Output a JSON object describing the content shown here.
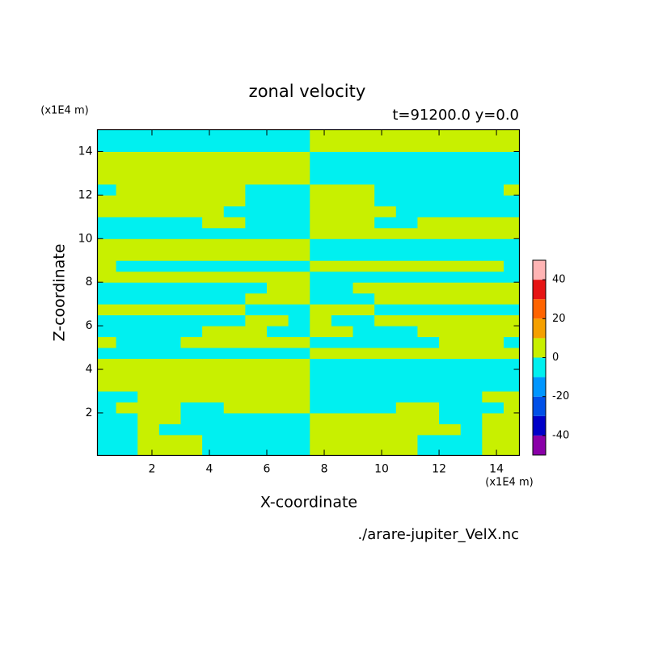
{
  "chart_data": {
    "type": "contour",
    "title": "zonal velocity",
    "subtitle": "t=91200.0 y=0.0",
    "x_label": "X-coordinate",
    "y_label": "Z-coordinate",
    "x_unit": "(x1E4 m)",
    "y_unit": "(x1E4 m)",
    "source": "./arare-jupiter_VelX.nc",
    "xlim": [
      0.1,
      14.8
    ],
    "ylim": [
      0.05,
      15
    ],
    "xticks": [
      2,
      4,
      6,
      8,
      10,
      12,
      14
    ],
    "yticks": [
      2,
      4,
      6,
      8,
      10,
      12,
      14
    ],
    "xbins": [
      0,
      0.75,
      1.5,
      2.25,
      3,
      3.75,
      4.5,
      5.25,
      6,
      6.75,
      7.5,
      8.25,
      9,
      9.75,
      10.5,
      11.25,
      12,
      12.75,
      13.5,
      14.25,
      15
    ],
    "ybins": [
      0,
      0.5,
      1,
      1.5,
      2,
      2.5,
      3,
      3.5,
      4,
      4.5,
      5,
      5.5,
      6,
      6.5,
      7,
      7.5,
      8,
      8.5,
      9,
      9.5,
      10,
      10.5,
      11,
      11.5,
      12,
      12.5,
      13,
      13.5,
      14,
      14.5,
      15
    ],
    "values": [
      [
        -5,
        -5,
        5,
        5,
        5,
        -5,
        -5,
        -5,
        -5,
        -5,
        5,
        5,
        5,
        5,
        5,
        -5,
        -5,
        -5,
        5,
        5
      ],
      [
        -5,
        -5,
        5,
        5,
        5,
        -5,
        -5,
        -5,
        -5,
        -5,
        5,
        5,
        5,
        5,
        5,
        -5,
        -5,
        -5,
        5,
        5
      ],
      [
        -5,
        -5,
        5,
        -5,
        -5,
        -5,
        -5,
        -5,
        -5,
        -5,
        5,
        5,
        5,
        5,
        5,
        5,
        5,
        -5,
        5,
        5
      ],
      [
        -5,
        -5,
        5,
        5,
        -5,
        -5,
        -5,
        -5,
        -5,
        -5,
        5,
        5,
        5,
        5,
        5,
        5,
        -5,
        -5,
        5,
        5
      ],
      [
        -5,
        5,
        5,
        5,
        -5,
        -5,
        5,
        5,
        5,
        5,
        -5,
        -5,
        -5,
        -5,
        5,
        5,
        -5,
        -5,
        -5,
        5
      ],
      [
        -5,
        -5,
        5,
        5,
        5,
        5,
        5,
        5,
        5,
        5,
        -5,
        -5,
        -5,
        -5,
        -5,
        -5,
        -5,
        -5,
        5,
        5
      ],
      [
        5,
        5,
        5,
        5,
        5,
        5,
        5,
        5,
        5,
        5,
        -5,
        -5,
        -5,
        -5,
        -5,
        -5,
        -5,
        -5,
        -5,
        -5
      ],
      [
        5,
        5,
        5,
        5,
        5,
        5,
        5,
        5,
        5,
        5,
        -5,
        -5,
        -5,
        -5,
        -5,
        -5,
        -5,
        -5,
        -5,
        -5
      ],
      [
        5,
        5,
        5,
        5,
        5,
        5,
        5,
        5,
        5,
        5,
        -5,
        -5,
        -5,
        -5,
        -5,
        -5,
        -5,
        -5,
        -5,
        -5
      ],
      [
        -5,
        -5,
        -5,
        -5,
        -5,
        -5,
        -5,
        -5,
        -5,
        -5,
        5,
        5,
        5,
        5,
        5,
        5,
        5,
        5,
        5,
        5
      ],
      [
        5,
        -5,
        -5,
        -5,
        5,
        5,
        5,
        5,
        5,
        5,
        -5,
        -5,
        -5,
        -5,
        -5,
        -5,
        5,
        5,
        5,
        -5
      ],
      [
        -5,
        -5,
        -5,
        -5,
        -5,
        5,
        5,
        5,
        -5,
        -5,
        5,
        5,
        -5,
        -5,
        -5,
        5,
        5,
        5,
        5,
        5
      ],
      [
        -5,
        -5,
        -5,
        -5,
        -5,
        -5,
        -5,
        5,
        5,
        -5,
        5,
        -5,
        -5,
        5,
        5,
        5,
        5,
        5,
        5,
        5
      ],
      [
        5,
        5,
        5,
        5,
        5,
        5,
        5,
        -5,
        -5,
        -5,
        5,
        5,
        5,
        -5,
        -5,
        -5,
        -5,
        -5,
        -5,
        -5
      ],
      [
        -5,
        -5,
        -5,
        -5,
        -5,
        -5,
        -5,
        5,
        5,
        5,
        -5,
        -5,
        -5,
        5,
        5,
        5,
        5,
        5,
        5,
        5
      ],
      [
        -5,
        -5,
        -5,
        -5,
        -5,
        -5,
        -5,
        -5,
        5,
        5,
        -5,
        -5,
        5,
        5,
        5,
        5,
        5,
        5,
        5,
        5
      ],
      [
        5,
        5,
        5,
        5,
        5,
        5,
        5,
        5,
        5,
        5,
        -5,
        -5,
        -5,
        -5,
        -5,
        -5,
        -5,
        -5,
        -5,
        -5
      ],
      [
        5,
        -5,
        -5,
        -5,
        -5,
        -5,
        -5,
        -5,
        -5,
        -5,
        5,
        5,
        5,
        5,
        5,
        5,
        5,
        5,
        5,
        -5
      ],
      [
        5,
        5,
        5,
        5,
        5,
        5,
        5,
        5,
        5,
        5,
        -5,
        -5,
        -5,
        -5,
        -5,
        -5,
        -5,
        -5,
        -5,
        -5
      ],
      [
        5,
        5,
        5,
        5,
        5,
        5,
        5,
        5,
        5,
        5,
        -5,
        -5,
        -5,
        -5,
        -5,
        -5,
        -5,
        -5,
        -5,
        -5
      ],
      [
        -5,
        -5,
        -5,
        -5,
        -5,
        -5,
        -5,
        -5,
        -5,
        -5,
        5,
        5,
        5,
        5,
        5,
        5,
        5,
        5,
        5,
        5
      ],
      [
        -5,
        -5,
        -5,
        -5,
        -5,
        5,
        5,
        -5,
        -5,
        -5,
        5,
        5,
        5,
        -5,
        -5,
        5,
        5,
        5,
        5,
        5
      ],
      [
        5,
        5,
        5,
        5,
        5,
        5,
        -5,
        -5,
        -5,
        -5,
        5,
        5,
        5,
        5,
        -5,
        -5,
        -5,
        -5,
        -5,
        -5
      ],
      [
        5,
        5,
        5,
        5,
        5,
        5,
        5,
        -5,
        -5,
        -5,
        5,
        5,
        5,
        -5,
        -5,
        -5,
        -5,
        -5,
        -5,
        -5
      ],
      [
        -5,
        5,
        5,
        5,
        5,
        5,
        5,
        -5,
        -5,
        -5,
        5,
        5,
        5,
        -5,
        -5,
        -5,
        -5,
        -5,
        -5,
        5
      ],
      [
        5,
        5,
        5,
        5,
        5,
        5,
        5,
        5,
        5,
        5,
        -5,
        -5,
        -5,
        -5,
        -5,
        -5,
        -5,
        -5,
        -5,
        -5
      ],
      [
        5,
        5,
        5,
        5,
        5,
        5,
        5,
        5,
        5,
        5,
        -5,
        -5,
        -5,
        -5,
        -5,
        -5,
        -5,
        -5,
        -5,
        -5
      ],
      [
        5,
        5,
        5,
        5,
        5,
        5,
        5,
        5,
        5,
        5,
        -5,
        -5,
        -5,
        -5,
        -5,
        -5,
        -5,
        -5,
        -5,
        -5
      ],
      [
        -5,
        -5,
        -5,
        -5,
        -5,
        -5,
        -5,
        -5,
        -5,
        -5,
        5,
        5,
        5,
        5,
        5,
        5,
        5,
        5,
        5,
        5
      ],
      [
        -5,
        -5,
        -5,
        -5,
        -5,
        -5,
        -5,
        -5,
        -5,
        -5,
        5,
        5,
        5,
        5,
        5,
        5,
        5,
        5,
        5,
        5
      ]
    ],
    "levels": [
      -50,
      -40,
      -30,
      -20,
      -10,
      0,
      10,
      20,
      30,
      40,
      50
    ],
    "colors": [
      "#8a00a8",
      "#0000c8",
      "#0050e8",
      "#0096ff",
      "#00f0f0",
      "#c8f000",
      "#f5a000",
      "#ff6400",
      "#e61414",
      "#ffb4b4"
    ],
    "colorbar_ticks": [
      -40,
      -20,
      0,
      20,
      40
    ]
  }
}
